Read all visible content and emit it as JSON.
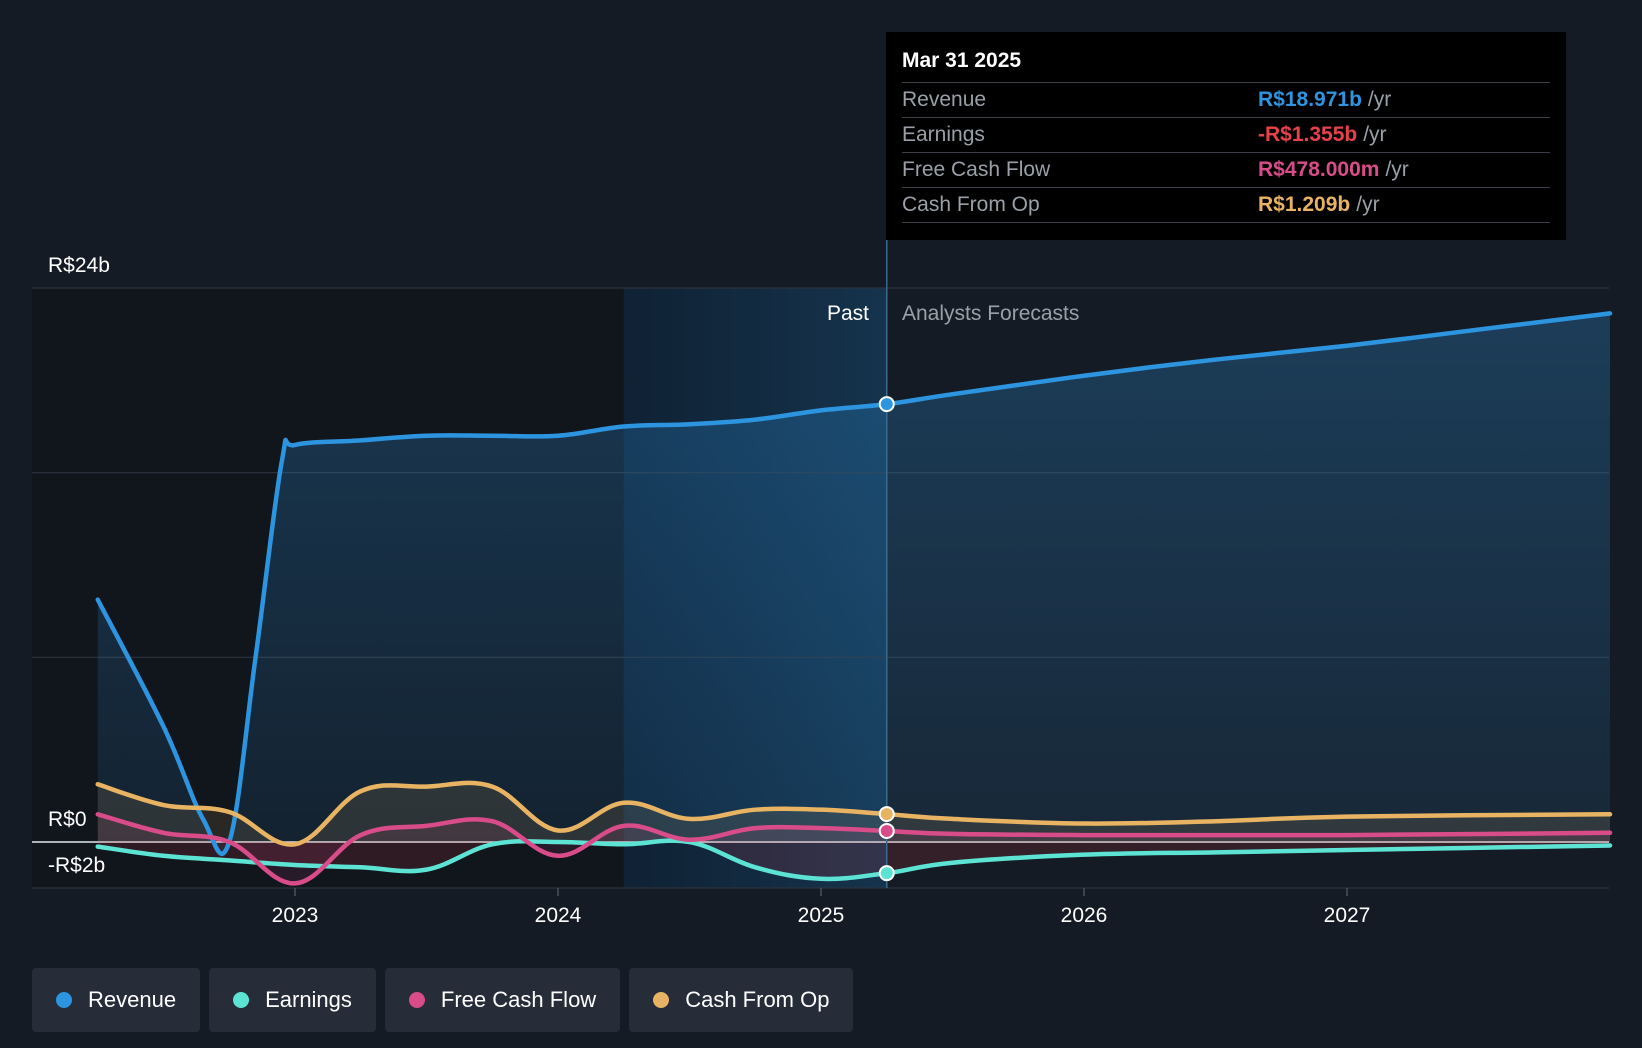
{
  "tooltip": {
    "date": "Mar 31 2025",
    "rows": [
      {
        "label": "Revenue",
        "value": "R$18.971b",
        "unit": "/yr",
        "color": "#2d94e0"
      },
      {
        "label": "Earnings",
        "value": "-R$1.355b",
        "unit": "/yr",
        "color": "#e8414b"
      },
      {
        "label": "Free Cash Flow",
        "value": "R$478.000m",
        "unit": "/yr",
        "color": "#d94c8a"
      },
      {
        "label": "Cash From Op",
        "value": "R$1.209b",
        "unit": "/yr",
        "color": "#e8b463"
      }
    ]
  },
  "labels": {
    "past": "Past",
    "forecast": "Analysts Forecasts"
  },
  "legend": [
    {
      "label": "Revenue",
      "color": "#2d94e0"
    },
    {
      "label": "Earnings",
      "color": "#5de3d3"
    },
    {
      "label": "Free Cash Flow",
      "color": "#d94c8a"
    },
    {
      "label": "Cash From Op",
      "color": "#e8b463"
    }
  ],
  "chart_data": {
    "type": "line",
    "y_tick_labels": [
      "R$24b",
      "R$0",
      "-R$2b"
    ],
    "x_tick_labels": [
      "2023",
      "2024",
      "2025",
      "2026",
      "2027"
    ],
    "ylim": [
      -2,
      24
    ],
    "x_ticks": [
      2023.0,
      2024.0,
      2025.0,
      2026.0,
      2027.0
    ],
    "xlim": [
      2022.0,
      2028.0
    ],
    "past_region_start": 2024.25,
    "highlight_x": 2025.25,
    "series": [
      {
        "name": "Revenue",
        "color": "#2d94e0",
        "x": [
          2022.25,
          2022.5,
          2022.65,
          2022.75,
          2022.85,
          2022.95,
          2023.0,
          2023.25,
          2023.5,
          2023.75,
          2024.0,
          2024.25,
          2024.5,
          2024.75,
          2025.0,
          2025.25,
          2025.5,
          2026.0,
          2026.5,
          2027.0,
          2027.5,
          2028.0
        ],
        "y": [
          10.5,
          5.0,
          1.0,
          0.0,
          8.0,
          16.5,
          17.2,
          17.4,
          17.6,
          17.6,
          17.6,
          18.0,
          18.1,
          18.3,
          18.7,
          18.971,
          19.4,
          20.2,
          20.9,
          21.5,
          22.2,
          22.9
        ]
      },
      {
        "name": "Earnings",
        "color": "#5de3d3",
        "x": [
          2022.25,
          2022.5,
          2022.75,
          2023.0,
          2023.25,
          2023.5,
          2023.75,
          2024.0,
          2024.25,
          2024.5,
          2024.75,
          2025.0,
          2025.25,
          2025.5,
          2026.0,
          2026.5,
          2027.0,
          2028.0
        ],
        "y": [
          -0.2,
          -0.6,
          -0.8,
          -1.0,
          -1.1,
          -1.2,
          -0.1,
          0.0,
          -0.1,
          0.0,
          -1.1,
          -1.6,
          -1.355,
          -0.9,
          -0.55,
          -0.45,
          -0.35,
          -0.15
        ]
      },
      {
        "name": "Free Cash Flow",
        "color": "#d94c8a",
        "x": [
          2022.25,
          2022.5,
          2022.75,
          2023.0,
          2023.25,
          2023.5,
          2023.75,
          2024.0,
          2024.25,
          2024.5,
          2024.75,
          2025.0,
          2025.25,
          2025.5,
          2026.0,
          2026.5,
          2027.0,
          2028.0
        ],
        "y": [
          1.2,
          0.4,
          0.0,
          -1.8,
          0.3,
          0.7,
          0.9,
          -0.6,
          0.7,
          0.1,
          0.6,
          0.6,
          0.478,
          0.35,
          0.3,
          0.3,
          0.3,
          0.4
        ]
      },
      {
        "name": "Cash From Op",
        "color": "#e8b463",
        "x": [
          2022.25,
          2022.5,
          2022.75,
          2023.0,
          2023.25,
          2023.5,
          2023.75,
          2024.0,
          2024.25,
          2024.5,
          2024.75,
          2025.0,
          2025.25,
          2025.5,
          2026.0,
          2026.5,
          2027.0,
          2028.0
        ],
        "y": [
          2.5,
          1.6,
          1.3,
          -0.1,
          2.2,
          2.4,
          2.4,
          0.5,
          1.7,
          1.0,
          1.4,
          1.4,
          1.209,
          1.0,
          0.8,
          0.9,
          1.1,
          1.2
        ]
      }
    ]
  }
}
